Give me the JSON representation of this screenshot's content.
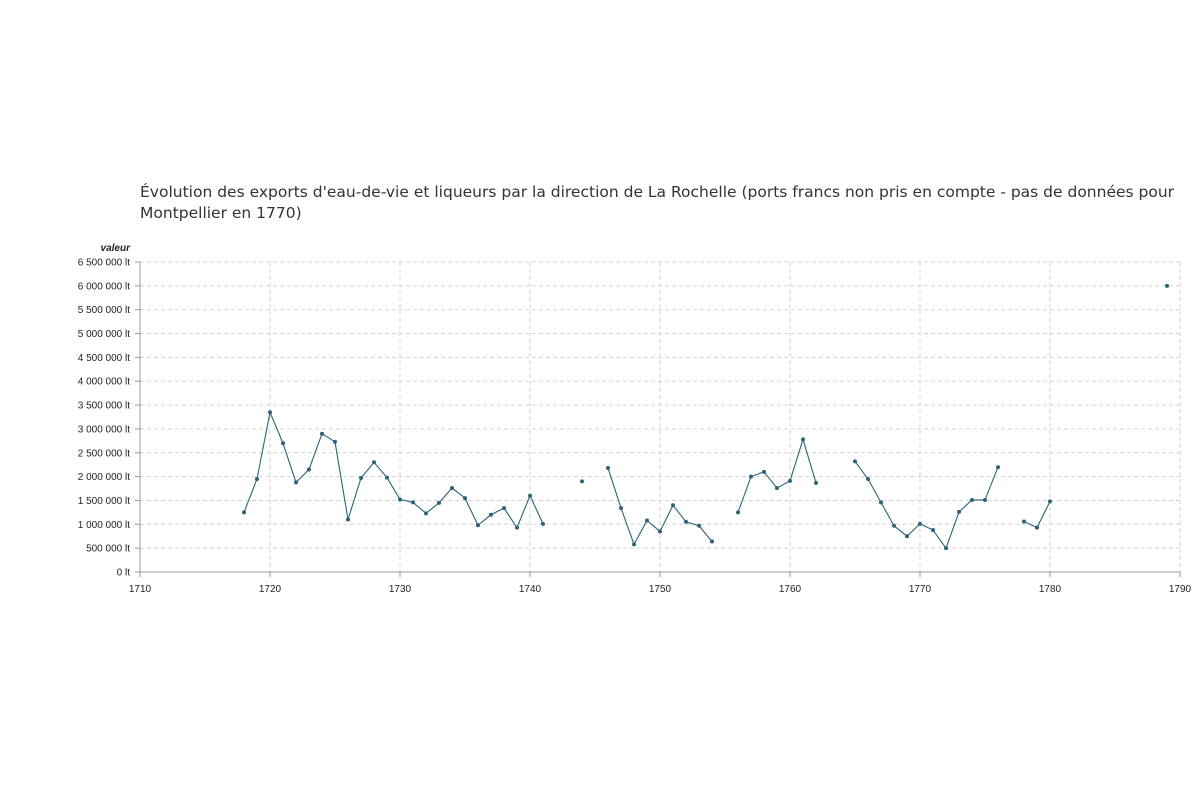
{
  "chart_data": {
    "type": "line",
    "title": "Évolution des exports d'eau-de-vie et liqueurs par la direction de La Rochelle (ports francs non pris en compte - pas de données pour Montpellier en 1770)",
    "xlabel": "",
    "ylabel": "valeur",
    "xlim": [
      1710,
      1790
    ],
    "ylim": [
      0,
      6500000
    ],
    "x_ticks": [
      1710,
      1720,
      1730,
      1740,
      1750,
      1760,
      1770,
      1780,
      1790
    ],
    "y_ticks": [
      0,
      500000,
      1000000,
      1500000,
      2000000,
      2500000,
      3000000,
      3500000,
      4000000,
      4500000,
      5000000,
      5500000,
      6000000,
      6500000
    ],
    "y_tick_labels": [
      "0 lt",
      "500 000 lt",
      "1 000 000 lt",
      "1 500 000 lt",
      "2 000 000 lt",
      "2 500 000 lt",
      "3 000 000 lt",
      "3 500 000 lt",
      "4 000 000 lt",
      "4 500 000 lt",
      "5 000 000 lt",
      "5 500 000 lt",
      "6 000 000 lt",
      "6 500 000 lt"
    ],
    "grid": true,
    "color": "#2c6379",
    "series": [
      {
        "points": [
          [
            1718,
            1250000
          ],
          [
            1719,
            1950000
          ],
          [
            1720,
            3350000
          ],
          [
            1721,
            2700000
          ],
          [
            1722,
            1880000
          ],
          [
            1723,
            2150000
          ],
          [
            1724,
            2900000
          ],
          [
            1725,
            2730000
          ],
          [
            1726,
            1100000
          ],
          [
            1727,
            1970000
          ],
          [
            1728,
            2300000
          ],
          [
            1729,
            1980000
          ],
          [
            1730,
            1520000
          ],
          [
            1731,
            1460000
          ],
          [
            1732,
            1230000
          ],
          [
            1733,
            1450000
          ],
          [
            1734,
            1760000
          ],
          [
            1735,
            1550000
          ],
          [
            1736,
            980000
          ],
          [
            1737,
            1200000
          ],
          [
            1738,
            1340000
          ],
          [
            1739,
            930000
          ],
          [
            1740,
            1600000
          ],
          [
            1741,
            1010000
          ],
          [
            1744,
            1900000
          ],
          [
            1746,
            2180000
          ],
          [
            1747,
            1340000
          ],
          [
            1748,
            580000
          ],
          [
            1749,
            1080000
          ],
          [
            1750,
            850000
          ],
          [
            1751,
            1400000
          ],
          [
            1752,
            1050000
          ],
          [
            1753,
            970000
          ],
          [
            1754,
            640000
          ],
          [
            1756,
            1250000
          ],
          [
            1757,
            2000000
          ],
          [
            1758,
            2100000
          ],
          [
            1759,
            1760000
          ],
          [
            1760,
            1910000
          ],
          [
            1761,
            2780000
          ],
          [
            1762,
            1870000
          ],
          [
            1765,
            2320000
          ],
          [
            1766,
            1950000
          ],
          [
            1767,
            1460000
          ],
          [
            1768,
            970000
          ],
          [
            1769,
            750000
          ],
          [
            1770,
            1010000
          ],
          [
            1771,
            880000
          ],
          [
            1772,
            500000
          ],
          [
            1773,
            1260000
          ],
          [
            1774,
            1510000
          ],
          [
            1775,
            1510000
          ],
          [
            1776,
            2200000
          ],
          [
            1778,
            1060000
          ],
          [
            1779,
            930000
          ],
          [
            1780,
            1480000
          ],
          [
            1789,
            6000000
          ]
        ]
      }
    ]
  }
}
